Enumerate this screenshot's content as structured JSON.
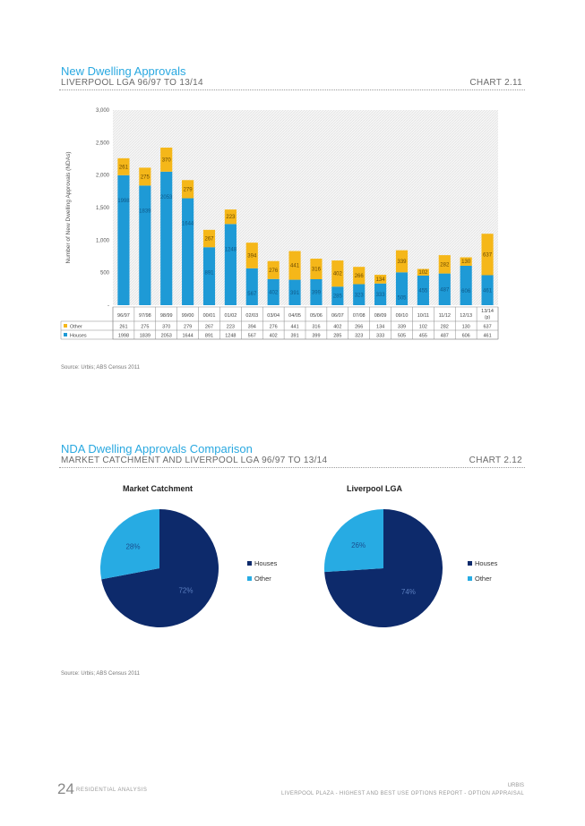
{
  "section1": {
    "title": "New Dwelling Approvals",
    "subtitle": "LIVERPOOL LGA 96/97 TO 13/14",
    "chart_ref": "CHART 2.11",
    "source": "Source: Urbis; ABS Census 2011"
  },
  "section2": {
    "title": "NDA Dwelling Approvals Comparison",
    "subtitle": "MARKET CATCHMENT AND LIVERPOOL LGA 96/97 TO 13/14",
    "chart_ref": "CHART 2.12",
    "source": "Source: Urbis; ABS Census 2011"
  },
  "footer": {
    "page_number": "24",
    "left_text": "RESIDENTIAL ANALYSIS",
    "right_line1": "URBIS",
    "right_line2": "LIVERPOOL PLAZA - HIGHEST AND BEST USE OPTIONS REPORT - OPTION APPRAISAL"
  },
  "colors": {
    "houses": "#1e9ad6",
    "other": "#f5b719",
    "pie_houses": "#0d2a6b",
    "pie_other": "#27abe3"
  },
  "chart_data": [
    {
      "type": "bar",
      "stacked": true,
      "ylabel": "Number of New Dwelling Approvals (NDAs)",
      "ylim": [
        0,
        3000
      ],
      "yticks": [
        "3,000",
        "2,500",
        "2,000",
        "1,500",
        "1,000",
        "500",
        "-"
      ],
      "grid": false,
      "categories": [
        "96/97",
        "97/98",
        "98/99",
        "99/00",
        "00/01",
        "01/02",
        "02/03",
        "03/04",
        "04/05",
        "05/06",
        "06/07",
        "07/08",
        "08/09",
        "09/10",
        "10/11",
        "11/12",
        "12/13",
        "13/14 (p)"
      ],
      "series": [
        {
          "name": "Houses",
          "values": [
            1998,
            1839,
            2053,
            1644,
            891,
            1248,
            567,
            402,
            391,
            399,
            285,
            323,
            333,
            505,
            455,
            487,
            606,
            461
          ]
        },
        {
          "name": "Other",
          "values": [
            261,
            275,
            370,
            279,
            267,
            223,
            394,
            276,
            441,
            316,
            402,
            266,
            134,
            339,
            102,
            282,
            130,
            637
          ]
        }
      ],
      "table": {
        "visible": true
      }
    },
    {
      "type": "pie",
      "title": "Market Catchment",
      "series": [
        {
          "name": "Houses",
          "value": 72,
          "label": "72%"
        },
        {
          "name": "Other",
          "value": 28,
          "label": "28%"
        }
      ],
      "legend": "right"
    },
    {
      "type": "pie",
      "title": "Liverpool LGA",
      "series": [
        {
          "name": "Houses",
          "value": 74,
          "label": "74%"
        },
        {
          "name": "Other",
          "value": 26,
          "label": "26%"
        }
      ],
      "legend": "right"
    }
  ]
}
